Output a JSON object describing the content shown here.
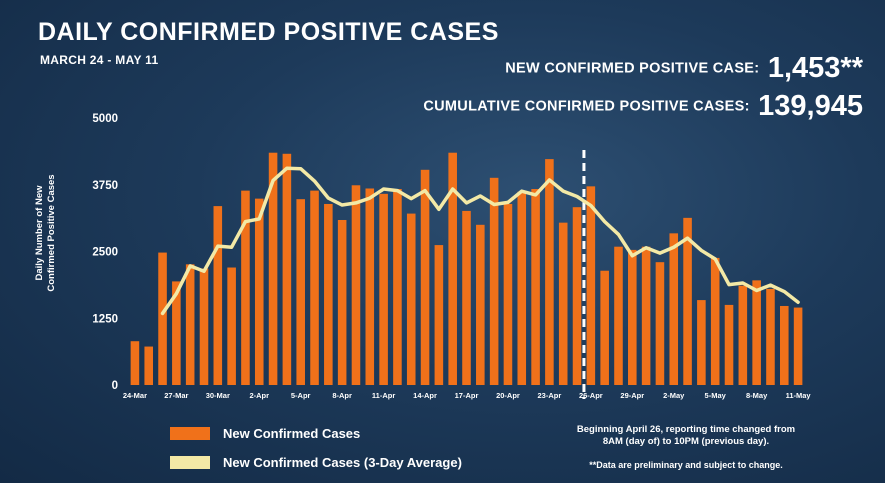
{
  "header": {
    "title": "DAILY CONFIRMED POSITIVE CASES",
    "date_range": "MARCH 24 - MAY 11"
  },
  "stats": {
    "new_label": "NEW CONFIRMED POSITIVE CASE:",
    "new_value": "1,453**",
    "cumulative_label": "CUMULATIVE CONFIRMED POSITIVE CASES:",
    "cumulative_value": "139,945"
  },
  "legend": {
    "bars_label": "New Confirmed Cases",
    "avg_label": "New Confirmed Cases (3-Day Average)"
  },
  "notes": {
    "line1": "Beginning April 26, reporting time changed from",
    "line2": "8AM (day of) to 10PM (previous day).",
    "disclaimer": "**Data are preliminary and subject to change."
  },
  "colors": {
    "bar": "#f0711a",
    "average_line": "#f3e9a6",
    "text": "#ffffff"
  },
  "chart_data": {
    "type": "bar",
    "ylabel": "Daily Number of New Confirmed Positive Cases",
    "ylim": [
      0,
      5000
    ],
    "yticks": [
      0,
      1250,
      2500,
      3750,
      5000
    ],
    "x_tick_labels": [
      "24-Mar",
      "27-Mar",
      "30-Mar",
      "2-Apr",
      "5-Apr",
      "8-Apr",
      "11-Apr",
      "14-Apr",
      "17-Apr",
      "20-Apr",
      "23-Apr",
      "26-Apr",
      "29-Apr",
      "2-May",
      "5-May",
      "8-May",
      "11-May"
    ],
    "tick_every": 3,
    "grid": false,
    "legend_position": "bottom-left",
    "annotation": "dashed vertical line at 26-Apr",
    "annotation_index": 33,
    "series": [
      {
        "name": "New Confirmed Cases",
        "values": [
          820,
          720,
          2480,
          1940,
          2260,
          2180,
          3350,
          2200,
          3640,
          3490,
          4350,
          4330,
          3480,
          3640,
          3390,
          3090,
          3740,
          3680,
          3580,
          3670,
          3210,
          4030,
          2620,
          4350,
          3260,
          3000,
          3880,
          3390,
          3620,
          3670,
          4230,
          3040,
          3330,
          3720,
          2140,
          2590,
          2530,
          2590,
          2300,
          2840,
          3130,
          1590,
          2380,
          1500,
          1860,
          1960,
          1800,
          1480,
          1450
        ]
      },
      {
        "name": "New Confirmed Cases (3-Day Average)",
        "values": [
          null,
          null,
          1340,
          1710,
          2230,
          2130,
          2600,
          2580,
          3060,
          3110,
          3830,
          4060,
          4050,
          3820,
          3500,
          3370,
          3410,
          3500,
          3670,
          3640,
          3490,
          3640,
          3290,
          3670,
          3410,
          3540,
          3380,
          3420,
          3630,
          3560,
          3840,
          3630,
          3530,
          3360,
          3060,
          2820,
          2420,
          2570,
          2470,
          2580,
          2750,
          2520,
          2360,
          1880,
          1910,
          1770,
          1870,
          1750,
          1550
        ]
      }
    ]
  }
}
